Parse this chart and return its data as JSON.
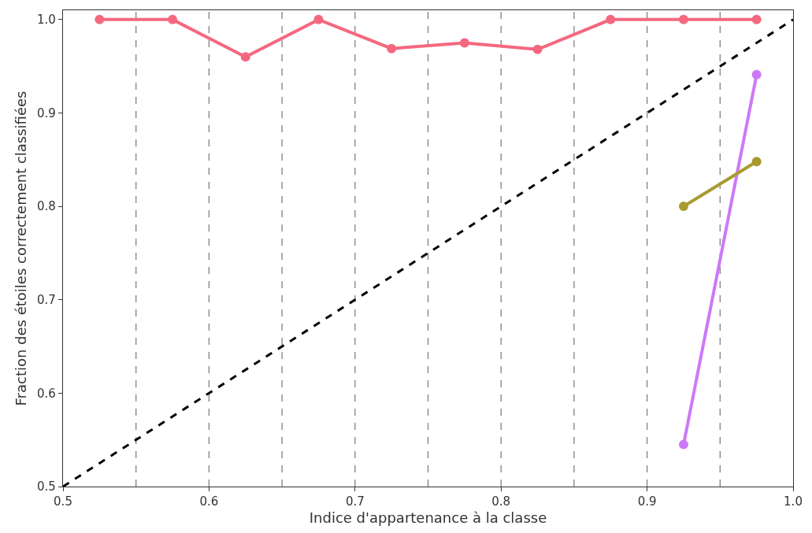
{
  "chart_data": {
    "type": "line",
    "xlabel": "Indice d'appartenance à la classe",
    "ylabel": "Fraction des étoiles correctement classifiées",
    "xlim": [
      0.5,
      1.0
    ],
    "xticks": [
      0.5,
      0.6,
      0.7,
      0.8,
      0.9,
      {
        "value": 1,
        "label": "1.0"
      }
    ],
    "ylim": [
      0.5,
      1.01
    ],
    "yticks": [
      0.5,
      0.6,
      0.7,
      0.8,
      0.9,
      {
        "value": 1,
        "label": "1.0"
      }
    ],
    "marker": "circle",
    "line_style": "solid",
    "series": [
      {
        "color": "#f4687f",
        "x": [
          0.525,
          0.575,
          0.625,
          0.675,
          0.725,
          0.775,
          0.825,
          0.875,
          0.925,
          0.975
        ],
        "values": [
          1.0,
          1.0,
          0.96,
          1.0,
          0.969,
          0.975,
          0.968,
          1.0,
          1.0,
          1.0
        ]
      },
      {
        "color": "#cc79f7",
        "x": [
          0.925,
          0.975
        ],
        "values": [
          0.545,
          0.941
        ]
      },
      {
        "color": "#a89a30",
        "x": [
          0.925,
          0.975
        ],
        "values": [
          0.8,
          0.848
        ]
      },
      {
        "color": "#000000",
        "x": [
          0.5,
          1.0
        ],
        "values": [
          0.5,
          1.0
        ],
        "marker": "none",
        "line_style": "dashed"
      }
    ],
    "ref_lines": [
      {
        "axis": "x",
        "value": 0.55,
        "label": null,
        "color": "#808080",
        "line_style": "dashed"
      },
      {
        "axis": "x",
        "value": 0.6,
        "label": null,
        "color": "#808080",
        "line_style": "dashed"
      },
      {
        "axis": "x",
        "value": 0.65,
        "label": null,
        "color": "#808080",
        "line_style": "dashed"
      },
      {
        "axis": "x",
        "value": 0.7,
        "label": null,
        "color": "#808080",
        "line_style": "dashed"
      },
      {
        "axis": "x",
        "value": 0.75,
        "label": null,
        "color": "#808080",
        "line_style": "dashed"
      },
      {
        "axis": "x",
        "value": 0.8,
        "label": null,
        "color": "#808080",
        "line_style": "dashed"
      },
      {
        "axis": "x",
        "value": 0.85,
        "label": null,
        "color": "#808080",
        "line_style": "dashed"
      },
      {
        "axis": "x",
        "value": 0.9,
        "label": null,
        "color": "#808080",
        "line_style": "dashed"
      },
      {
        "axis": "x",
        "value": 0.95,
        "label": null,
        "color": "#808080",
        "line_style": "dashed"
      }
    ]
  }
}
